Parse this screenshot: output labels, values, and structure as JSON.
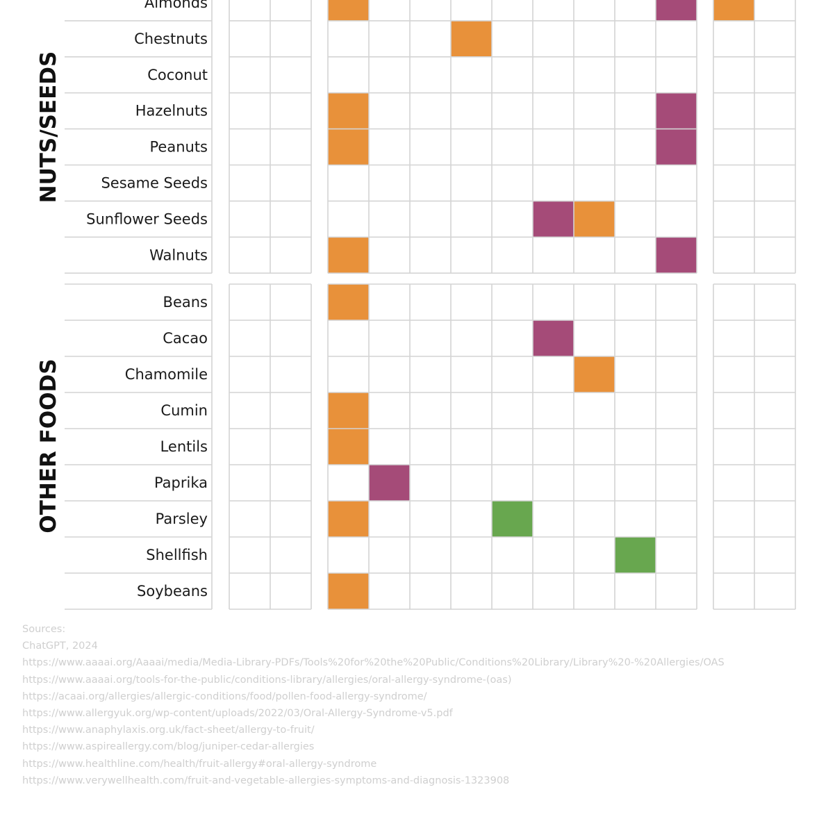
{
  "colors": {
    "orange": "#e8913a",
    "purple": "#a54b78",
    "green": "#68a74f",
    "grid": "#d4d4d4"
  },
  "chart_data": {
    "type": "heatmap",
    "column_groups": [
      2,
      9,
      2
    ],
    "groups": [
      {
        "label": "NUTS/SEEDS",
        "rows": [
          {
            "label": "Almonds",
            "cells": [
              [
                2,
                "orange"
              ],
              [
                10,
                "purple"
              ],
              [
                11,
                "orange"
              ]
            ]
          },
          {
            "label": "Chestnuts",
            "cells": [
              [
                5,
                "orange"
              ]
            ]
          },
          {
            "label": "Coconut",
            "cells": []
          },
          {
            "label": "Hazelnuts",
            "cells": [
              [
                2,
                "orange"
              ],
              [
                10,
                "purple"
              ]
            ]
          },
          {
            "label": "Peanuts",
            "cells": [
              [
                2,
                "orange"
              ],
              [
                10,
                "purple"
              ]
            ]
          },
          {
            "label": "Sesame Seeds",
            "cells": []
          },
          {
            "label": "Sunflower Seeds",
            "cells": [
              [
                7,
                "purple"
              ],
              [
                8,
                "orange"
              ]
            ]
          },
          {
            "label": "Walnuts",
            "cells": [
              [
                2,
                "orange"
              ],
              [
                10,
                "purple"
              ]
            ]
          }
        ]
      },
      {
        "label": "OTHER FOODS",
        "rows": [
          {
            "label": "Beans",
            "cells": [
              [
                2,
                "orange"
              ]
            ]
          },
          {
            "label": "Cacao",
            "cells": [
              [
                7,
                "purple"
              ]
            ]
          },
          {
            "label": "Chamomile",
            "cells": [
              [
                8,
                "orange"
              ]
            ]
          },
          {
            "label": "Cumin",
            "cells": [
              [
                2,
                "orange"
              ]
            ]
          },
          {
            "label": "Lentils",
            "cells": [
              [
                2,
                "orange"
              ]
            ]
          },
          {
            "label": "Paprika",
            "cells": [
              [
                3,
                "purple"
              ]
            ]
          },
          {
            "label": "Parsley",
            "cells": [
              [
                2,
                "orange"
              ],
              [
                6,
                "green"
              ]
            ]
          },
          {
            "label": "Shellfish",
            "cells": [
              [
                9,
                "green"
              ]
            ]
          },
          {
            "label": "Soybeans",
            "cells": [
              [
                2,
                "orange"
              ]
            ]
          }
        ]
      }
    ]
  },
  "sources": {
    "heading": "Sources:",
    "lines": [
      "ChatGPT, 2024",
      "https://www.aaaai.org/Aaaai/media/Media-Library-PDFs/Tools%20for%20the%20Public/Conditions%20Library/Library%20-%20Allergies/OAS",
      "https://www.aaaai.org/tools-for-the-public/conditions-library/allergies/oral-allergy-syndrome-(oas)",
      "https://acaai.org/allergies/allergic-conditions/food/pollen-food-allergy-syndrome/",
      "https://www.allergyuk.org/wp-content/uploads/2022/03/Oral-Allergy-Syndrome-v5.pdf",
      "https://www.anaphylaxis.org.uk/fact-sheet/allergy-to-fruit/",
      "https://www.aspireallergy.com/blog/juniper-cedar-allergies",
      "https://www.healthline.com/health/fruit-allergy#oral-allergy-syndrome",
      "https://www.verywellhealth.com/fruit-and-vegetable-allergies-symptoms-and-diagnosis-1323908"
    ]
  }
}
